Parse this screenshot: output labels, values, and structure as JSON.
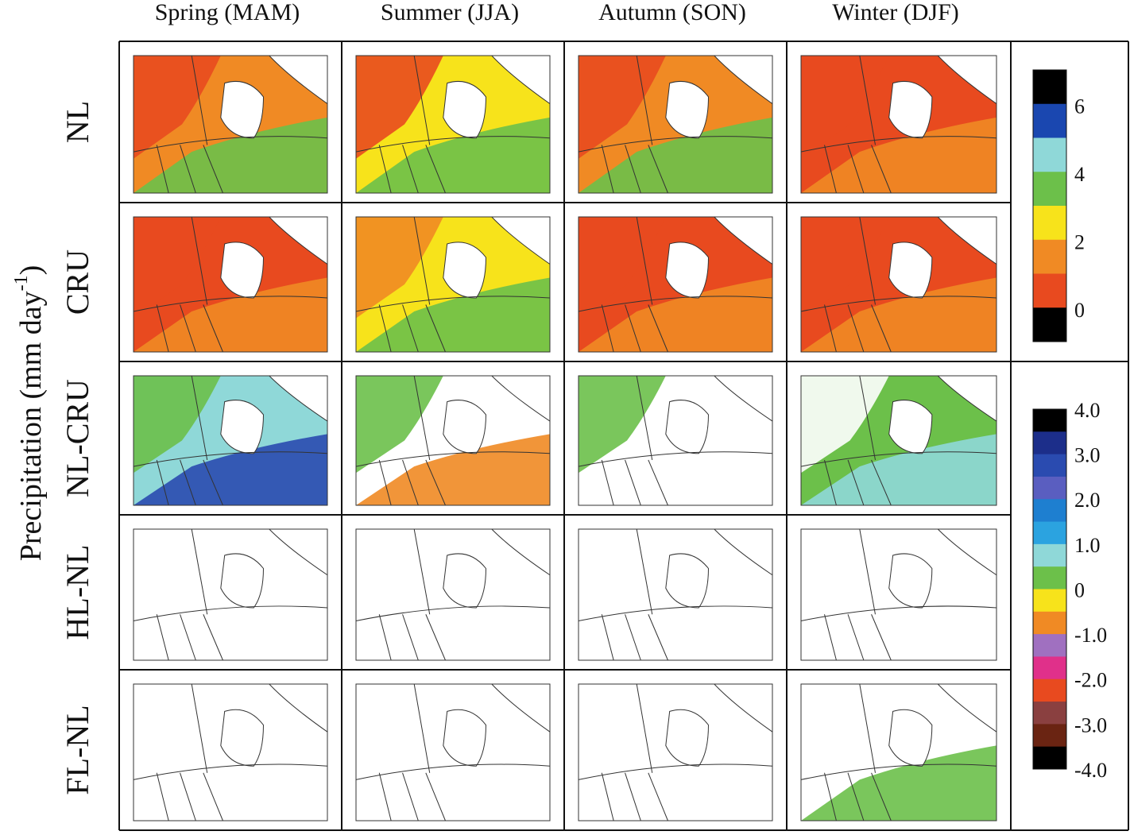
{
  "columns": [
    "Spring (MAM)",
    "Summer (JJA)",
    "Autumn (SON)",
    "Winter (DJF)"
  ],
  "rows": [
    "NL",
    "CRU",
    "NL-CRU",
    "HL-NL",
    "FL-NL"
  ],
  "y_label": {
    "before": "Precipitation (mm day",
    "sup": "-1",
    "after": ")"
  },
  "colorbars": [
    {
      "labels": [
        "6",
        "4",
        "2",
        "0"
      ],
      "colors": [
        "#000000",
        "#1a47b0",
        "#8fd8d8",
        "#6cc04a",
        "#f7e31b",
        "#f08a24",
        "#e84a1f",
        "#000000"
      ]
    },
    {
      "labels": [
        "4.0",
        "3.0",
        "2.0",
        "1.0",
        "0",
        "-1.0",
        "-2.0",
        "-3.0",
        "-4.0"
      ],
      "colors": [
        "#000000",
        "#1c2e8a",
        "#2a4bb0",
        "#5a5ec0",
        "#1e7fd0",
        "#2ba3e0",
        "#8fd8d8",
        "#6cc04a",
        "#f7e31b",
        "#f08a24",
        "#a070c0",
        "#e0308a",
        "#e84a1f",
        "#8a4040",
        "#6a2412",
        "#000000"
      ]
    }
  ]
}
